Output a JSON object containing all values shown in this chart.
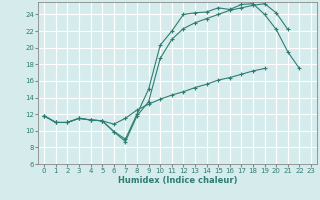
{
  "xlabel": "Humidex (Indice chaleur)",
  "bg_color": "#d6ecec",
  "grid_color": "#b8d8d8",
  "line_color": "#2e7d72",
  "xlim": [
    -0.5,
    23.5
  ],
  "ylim": [
    6,
    25.5
  ],
  "xticks": [
    0,
    1,
    2,
    3,
    4,
    5,
    6,
    7,
    8,
    9,
    10,
    11,
    12,
    13,
    14,
    15,
    16,
    17,
    18,
    19,
    20,
    21,
    22,
    23
  ],
  "yticks": [
    6,
    8,
    10,
    12,
    14,
    16,
    18,
    20,
    22,
    24
  ],
  "line1_x": [
    0,
    1,
    2,
    3,
    4,
    5,
    6,
    7,
    8,
    9,
    10,
    11,
    12,
    13,
    14,
    15,
    16,
    17,
    18,
    19,
    20,
    21,
    22
  ],
  "line1_y": [
    11.8,
    11.0,
    11.0,
    11.5,
    11.3,
    11.2,
    9.9,
    9.0,
    12.0,
    15.0,
    20.3,
    22.0,
    24.0,
    24.2,
    24.3,
    24.8,
    24.6,
    25.2,
    25.3,
    24.0,
    22.2,
    19.5,
    17.5
  ],
  "line2_x": [
    0,
    1,
    2,
    3,
    4,
    5,
    6,
    7,
    8,
    9,
    10,
    11,
    12,
    13,
    14,
    15,
    16,
    17,
    18,
    19,
    20,
    21
  ],
  "line2_y": [
    11.8,
    11.0,
    11.0,
    11.5,
    11.3,
    11.2,
    9.9,
    8.7,
    11.8,
    13.5,
    18.7,
    21.0,
    22.3,
    23.0,
    23.5,
    24.0,
    24.5,
    24.8,
    25.1,
    25.3,
    24.2,
    22.2
  ],
  "line3_x": [
    0,
    1,
    2,
    3,
    4,
    5,
    6,
    7,
    8,
    9,
    10,
    11,
    12,
    13,
    14,
    15,
    16,
    17,
    18,
    19
  ],
  "line3_y": [
    11.8,
    11.0,
    11.0,
    11.5,
    11.3,
    11.2,
    10.8,
    11.5,
    12.5,
    13.2,
    13.8,
    14.3,
    14.7,
    15.2,
    15.6,
    16.1,
    16.4,
    16.8,
    17.2,
    17.5
  ]
}
